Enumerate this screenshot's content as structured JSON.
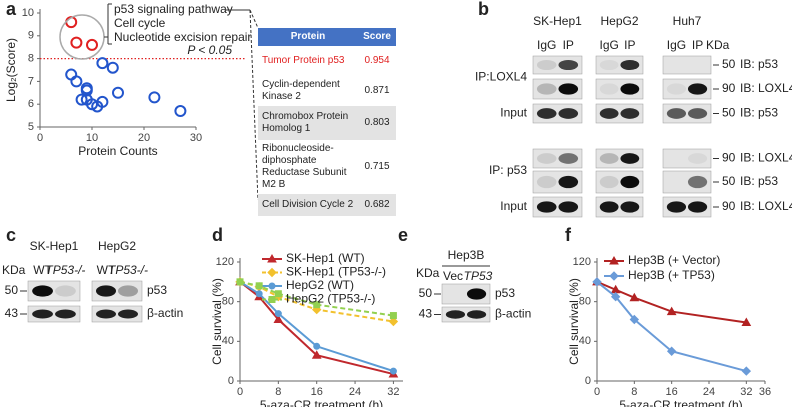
{
  "panel_labels": [
    "a",
    "b",
    "c",
    "d",
    "e",
    "f"
  ],
  "chart_data": [
    {
      "type": "scatter",
      "xlabel": "Protein Counts",
      "ylabel": "Log₂(Score)",
      "xlim": [
        0,
        30
      ],
      "xticks": [
        0,
        10,
        20,
        30
      ],
      "ylim": [
        5,
        10
      ],
      "yticks": [
        5,
        6,
        7,
        8,
        9,
        10
      ],
      "threshold": 8,
      "threshold_color": "#e02020",
      "threshold_label": "P < 0.05",
      "series": [
        {
          "color": "#e02020",
          "x": [
            6,
            7,
            10
          ],
          "values": [
            9.6,
            8.7,
            8.6
          ]
        },
        {
          "color": "#2255cc",
          "x": [
            6,
            7,
            8,
            9,
            9,
            9,
            10,
            11,
            12,
            12,
            14,
            15,
            22,
            27
          ],
          "values": [
            7.3,
            7.0,
            6.2,
            6.6,
            6.7,
            6.2,
            6.0,
            5.9,
            7.8,
            6.1,
            7.6,
            6.5,
            6.3,
            5.7
          ]
        }
      ]
    },
    {
      "type": "line",
      "xlabel": "5-aza-CR treatment (h)",
      "ylabel": "Cell survival (%)",
      "x": [
        0,
        4,
        8,
        16,
        32
      ],
      "xlim": [
        0,
        34
      ],
      "xticks": [
        0,
        8,
        16,
        24,
        32
      ],
      "ylim": [
        0,
        120
      ],
      "yticks": [
        0,
        40,
        80,
        120
      ],
      "series": [
        {
          "name": "SK-Hep1 (WT)",
          "color": "#c0282d",
          "marker": "triangle",
          "dashed": false,
          "values": [
            100,
            85,
            62,
            26,
            7
          ]
        },
        {
          "name": "SK-Hep1 (TP53-/-)",
          "color": "#f2c12e",
          "marker": "diamond",
          "dashed": true,
          "values": [
            100,
            95,
            85,
            72,
            60
          ]
        },
        {
          "name": "HepG2 (WT)",
          "color": "#5b9bd5",
          "marker": "circle",
          "dashed": false,
          "values": [
            100,
            88,
            68,
            35,
            10
          ]
        },
        {
          "name": "HepG2 (TP53-/-)",
          "color": "#92d050",
          "marker": "square",
          "dashed": true,
          "values": [
            100,
            96,
            88,
            77,
            66
          ]
        }
      ]
    },
    {
      "type": "line",
      "xlabel": "5-aza-CR treatment (h)",
      "ylabel": "Cell survival (%)",
      "x": [
        0,
        4,
        8,
        16,
        32
      ],
      "xlim": [
        0,
        36
      ],
      "xticks": [
        0,
        8,
        16,
        24,
        32,
        36
      ],
      "ylim": [
        0,
        120
      ],
      "yticks": [
        0,
        40,
        80,
        120
      ],
      "series": [
        {
          "name": "Hep3B (+ Vector)",
          "color": "#b22222",
          "marker": "triangle",
          "dashed": false,
          "values": [
            100,
            92,
            84,
            70,
            59
          ]
        },
        {
          "name": "Hep3B (+ TP53)",
          "color": "#6a9bd8",
          "marker": "diamond",
          "dashed": false,
          "values": [
            100,
            85,
            62,
            30,
            10
          ]
        }
      ]
    }
  ],
  "pathways": [
    "p53 signaling pathway",
    "Cell cycle",
    "Nucleotide excision repair"
  ],
  "table": {
    "header": [
      "Protein",
      "Score"
    ],
    "rows": [
      {
        "protein": "Tumor Protein p53",
        "score": 0.954,
        "color": "#e02020"
      },
      {
        "protein": "Cyclin-dependent Kinase 2",
        "score": 0.871,
        "color": "#222222"
      },
      {
        "protein": "Chromobox Protein Homolog 1",
        "score": 0.803,
        "color": "#222222"
      },
      {
        "protein": "Ribonucleoside-diphosphate Reductase Subunit M2 B",
        "score": 0.715,
        "color": "#222222"
      },
      {
        "protein": "Cell Division Cycle 2",
        "score": 0.682,
        "color": "#222222"
      }
    ]
  },
  "panel_b": {
    "cell_lines": [
      "SK-Hep1",
      "HepG2",
      "Huh7"
    ],
    "lanes": [
      [
        "IgG",
        "IP"
      ],
      [
        "IgG",
        "IP"
      ],
      [
        "IgG",
        "IP"
      ]
    ],
    "kda": "KDa",
    "groups": [
      {
        "label": "IP:LOXL4",
        "rows": [
          {
            "kda": 50,
            "ib": "IB: p53"
          },
          {
            "kda": 90,
            "ib": "IB: LOXL4"
          }
        ]
      },
      {
        "label": "Input",
        "rows": [
          {
            "kda": 50,
            "ib": "IB: p53"
          }
        ]
      },
      {
        "label": "IP: p53",
        "rows": [
          {
            "kda": 90,
            "ib": "IB: LOXL4"
          },
          {
            "kda": 50,
            "ib": "IB: p53"
          }
        ]
      },
      {
        "label": "Input",
        "rows": [
          {
            "kda": 90,
            "ib": "IB: LOXL4"
          }
        ]
      }
    ]
  },
  "panel_c": {
    "cell_lines": [
      "SK-Hep1",
      "HepG2"
    ],
    "lanes": [
      [
        "WT",
        "TP53-/-"
      ],
      [
        "WT",
        "TP53-/-"
      ]
    ],
    "kda": "KDa",
    "rows": [
      {
        "kda": 50,
        "label": "p53"
      },
      {
        "kda": 43,
        "label": "β-actin"
      }
    ]
  },
  "panel_e": {
    "cell_line": "Hep3B",
    "lanes": [
      "Vec",
      "TP53"
    ],
    "kda": "KDa",
    "rows": [
      {
        "kda": 50,
        "label": "p53"
      },
      {
        "kda": 43,
        "label": "β-actin"
      }
    ]
  }
}
